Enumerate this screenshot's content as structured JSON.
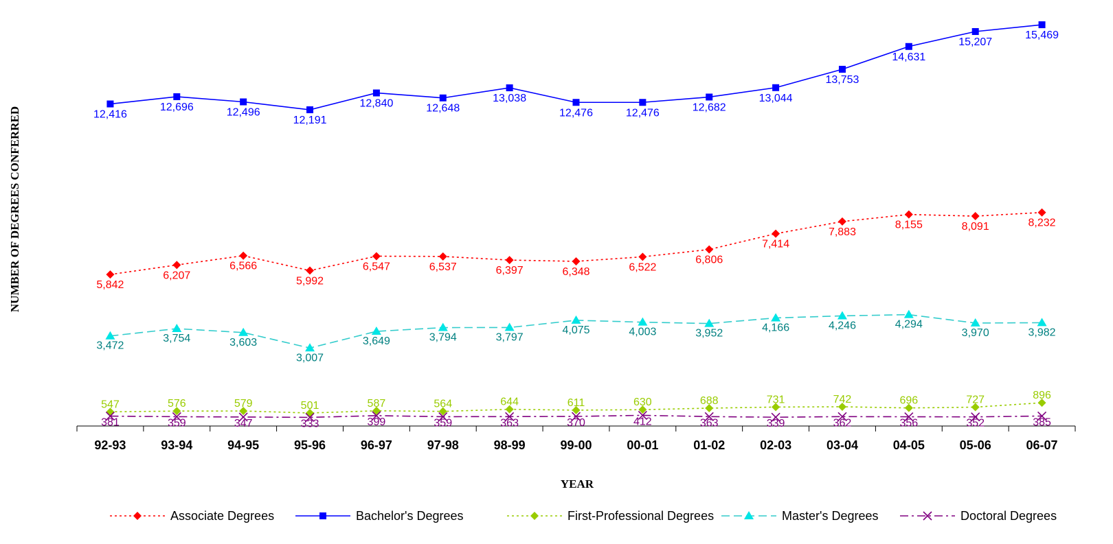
{
  "chart_data": {
    "type": "line",
    "xlabel": "YEAR",
    "ylabel": "NUMBER OF DEGREES CONFERRED",
    "categories": [
      "92-93",
      "93-94",
      "94-95",
      "95-96",
      "96-97",
      "97-98",
      "98-99",
      "99-00",
      "00-01",
      "01-02",
      "02-03",
      "03-04",
      "04-05",
      "05-06",
      "06-07"
    ],
    "ylim": [
      0,
      16000
    ],
    "grid": false,
    "legend_position": "bottom",
    "series": [
      {
        "name": "Associate Degrees",
        "color": "#ff0000",
        "marker": "diamond",
        "line": "dotted",
        "values": [
          5842,
          6207,
          6566,
          5992,
          6547,
          6537,
          6397,
          6348,
          6522,
          6806,
          7414,
          7883,
          8155,
          8091,
          8232
        ],
        "labels": [
          "5,842",
          "6,207",
          "6,566",
          "5,992",
          "6,547",
          "6,537",
          "6,397",
          "6,348",
          "6,522",
          "6,806",
          "7,414",
          "7,883",
          "8,155",
          "8,091",
          "8,232"
        ]
      },
      {
        "name": "Bachelor's Degrees",
        "color": "#0000ff",
        "marker": "square",
        "line": "solid",
        "values": [
          12416,
          12696,
          12496,
          12191,
          12840,
          12648,
          13038,
          12476,
          12476,
          12682,
          13044,
          13753,
          14631,
          15207,
          15469
        ],
        "labels": [
          "12,416",
          "12,696",
          "12,496",
          "12,191",
          "12,840",
          "12,648",
          "13,038",
          "12,476",
          "12,476",
          "12,682",
          "13,044",
          "13,753",
          "14,631",
          "15,207",
          "15,469"
        ]
      },
      {
        "name": "First-Professional Degrees",
        "color": "#99cc00",
        "marker": "diamond",
        "line": "dotted",
        "values": [
          547,
          576,
          579,
          501,
          587,
          564,
          644,
          611,
          630,
          688,
          731,
          742,
          696,
          727,
          896
        ],
        "labels": [
          "547",
          "576",
          "579",
          "501",
          "587",
          "564",
          "644",
          "611",
          "630",
          "688",
          "731",
          "742",
          "696",
          "727",
          "896"
        ]
      },
      {
        "name": "Master's Degrees",
        "color": "#33cccc",
        "marker": "triangle",
        "line": "dashed",
        "values": [
          3472,
          3754,
          3603,
          3007,
          3649,
          3794,
          3797,
          4075,
          4003,
          3952,
          4166,
          4246,
          4294,
          3970,
          3982
        ],
        "labels": [
          "3,472",
          "3,754",
          "3,603",
          "3,007",
          "3,649",
          "3,794",
          "3,797",
          "4,075",
          "4,003",
          "3,952",
          "4,166",
          "4,246",
          "4,294",
          "3,970",
          "3,982"
        ]
      },
      {
        "name": "Doctoral Degrees",
        "color": "#800080",
        "marker": "x",
        "line": "dashdot",
        "values": [
          381,
          359,
          347,
          333,
          399,
          359,
          363,
          370,
          412,
          363,
          339,
          362,
          356,
          352,
          385
        ],
        "labels": [
          "381",
          "359",
          "347",
          "333",
          "399",
          "359",
          "363",
          "370",
          "412",
          "363",
          "339",
          "362",
          "356",
          "352",
          "385"
        ]
      }
    ]
  },
  "colors": {
    "associate_label": "#ff0000",
    "bachelor_label": "#0000ff",
    "first_professional_label": "#99cc00",
    "master_label": "#008080",
    "doctoral_label": "#800080"
  }
}
